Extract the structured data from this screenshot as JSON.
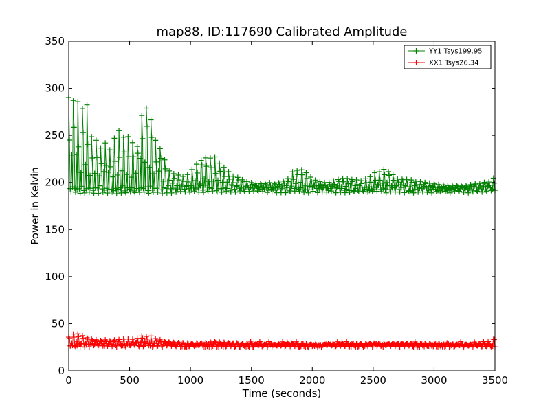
{
  "chart_data": {
    "type": "line",
    "title": "map88, ID:117690 Calibrated Amplitude",
    "xlabel": "Time (seconds)",
    "ylabel": "Power in Kelvin",
    "xlim": [
      0,
      3500
    ],
    "ylim": [
      0,
      350
    ],
    "xticks": [
      0,
      500,
      1000,
      1500,
      2000,
      2500,
      3000,
      3500
    ],
    "yticks": [
      0,
      50,
      100,
      150,
      200,
      250,
      300,
      350
    ],
    "grid": false,
    "legend_position": "top-right",
    "marker": "plus",
    "series": [
      {
        "name": "YY1 Tsys199.95",
        "color": "#008000",
        "baseline": 193,
        "x": [
          0,
          10,
          30,
          50,
          70,
          90,
          110,
          130,
          150,
          175,
          200,
          230,
          260,
          290,
          320,
          350,
          380,
          410,
          440,
          470,
          500,
          530,
          560,
          590,
          620,
          650,
          680,
          710,
          740,
          770,
          800,
          830,
          860,
          890,
          920,
          960,
          1000,
          1050,
          1100,
          1150,
          1200,
          1250,
          1300,
          1350,
          1400,
          1450,
          1500,
          1550,
          1600,
          1650,
          1700,
          1750,
          1800,
          1850,
          1900,
          1950,
          2000,
          2050,
          2100,
          2150,
          2200,
          2250,
          2300,
          2350,
          2400,
          2450,
          2500,
          2550,
          2600,
          2650,
          2700,
          2750,
          2800,
          2850,
          2900,
          2950,
          3000,
          3050,
          3100,
          3150,
          3200,
          3250,
          3300,
          3350,
          3400,
          3450,
          3500
        ],
        "peak": [
          297,
          280,
          300,
          270,
          305,
          260,
          292,
          250,
          285,
          245,
          262,
          248,
          240,
          245,
          245,
          230,
          252,
          258,
          255,
          245,
          258,
          245,
          240,
          268,
          282,
          278,
          267,
          245,
          242,
          232,
          222,
          212,
          210,
          208,
          208,
          207,
          212,
          220,
          226,
          228,
          230,
          220,
          215,
          208,
          205,
          202,
          200,
          199,
          199,
          200,
          199,
          201,
          205,
          214,
          216,
          212,
          205,
          202,
          200,
          201,
          203,
          205,
          204,
          203,
          202,
          205,
          210,
          212,
          216,
          210,
          205,
          204,
          203,
          202,
          201,
          200,
          199,
          198,
          197,
          197,
          196,
          196,
          198,
          199,
          200,
          201,
          206
        ],
        "trough": [
          188,
          188,
          188,
          188,
          188,
          188,
          188,
          188,
          188,
          188,
          188,
          188,
          188,
          188,
          188,
          188,
          188,
          188,
          188,
          188,
          188,
          188,
          188,
          188,
          188,
          188,
          188,
          188,
          188,
          188,
          188,
          188,
          189,
          189,
          189,
          189,
          189,
          189,
          189,
          189,
          189,
          189,
          189,
          189,
          189,
          189,
          189,
          189,
          189,
          189,
          189,
          189,
          189,
          189,
          189,
          189,
          189,
          189,
          189,
          189,
          189,
          189,
          189,
          189,
          189,
          189,
          189,
          189,
          189,
          189,
          189,
          189,
          189,
          189,
          189,
          189,
          189,
          189,
          189,
          189,
          189,
          189,
          189,
          189,
          189,
          189,
          190
        ]
      },
      {
        "name": "XX1 Tsys26.34",
        "color": "#ff0000",
        "baseline": 27,
        "x": [
          0,
          20,
          40,
          60,
          80,
          100,
          120,
          150,
          180,
          210,
          240,
          270,
          300,
          330,
          360,
          390,
          420,
          450,
          480,
          510,
          540,
          570,
          600,
          630,
          660,
          690,
          720,
          750,
          800,
          850,
          900,
          950,
          1000,
          1100,
          1200,
          1300,
          1400,
          1500,
          1600,
          1700,
          1800,
          1900,
          2000,
          2100,
          2200,
          2300,
          2400,
          2500,
          2600,
          2700,
          2800,
          2900,
          3000,
          3100,
          3200,
          3300,
          3400,
          3450,
          3500
        ],
        "peak": [
          36,
          38,
          40,
          41,
          39,
          37,
          39,
          36,
          34,
          33,
          33,
          32,
          33,
          32,
          33,
          33,
          34,
          34,
          34,
          34,
          34,
          35,
          37,
          37,
          38,
          36,
          34,
          33,
          31,
          30,
          30,
          30,
          29,
          30,
          31,
          30,
          29,
          29,
          28,
          28,
          29,
          29,
          28,
          28,
          28,
          29,
          29,
          29,
          29,
          29,
          29,
          29,
          29,
          29,
          28,
          28,
          29,
          28,
          36
        ],
        "trough": [
          25,
          25,
          25,
          25,
          25,
          25,
          25,
          25,
          25,
          25,
          25,
          25,
          25,
          25,
          25,
          25,
          25,
          25,
          25,
          25,
          25,
          25,
          25,
          25,
          25,
          25,
          25,
          25,
          25,
          25,
          25,
          25,
          25,
          25,
          25,
          25,
          25,
          25,
          25,
          25,
          25,
          25,
          25,
          25,
          25,
          25,
          25,
          25,
          25,
          25,
          25,
          25,
          25,
          25,
          25,
          25,
          25,
          25,
          26
        ]
      }
    ]
  }
}
